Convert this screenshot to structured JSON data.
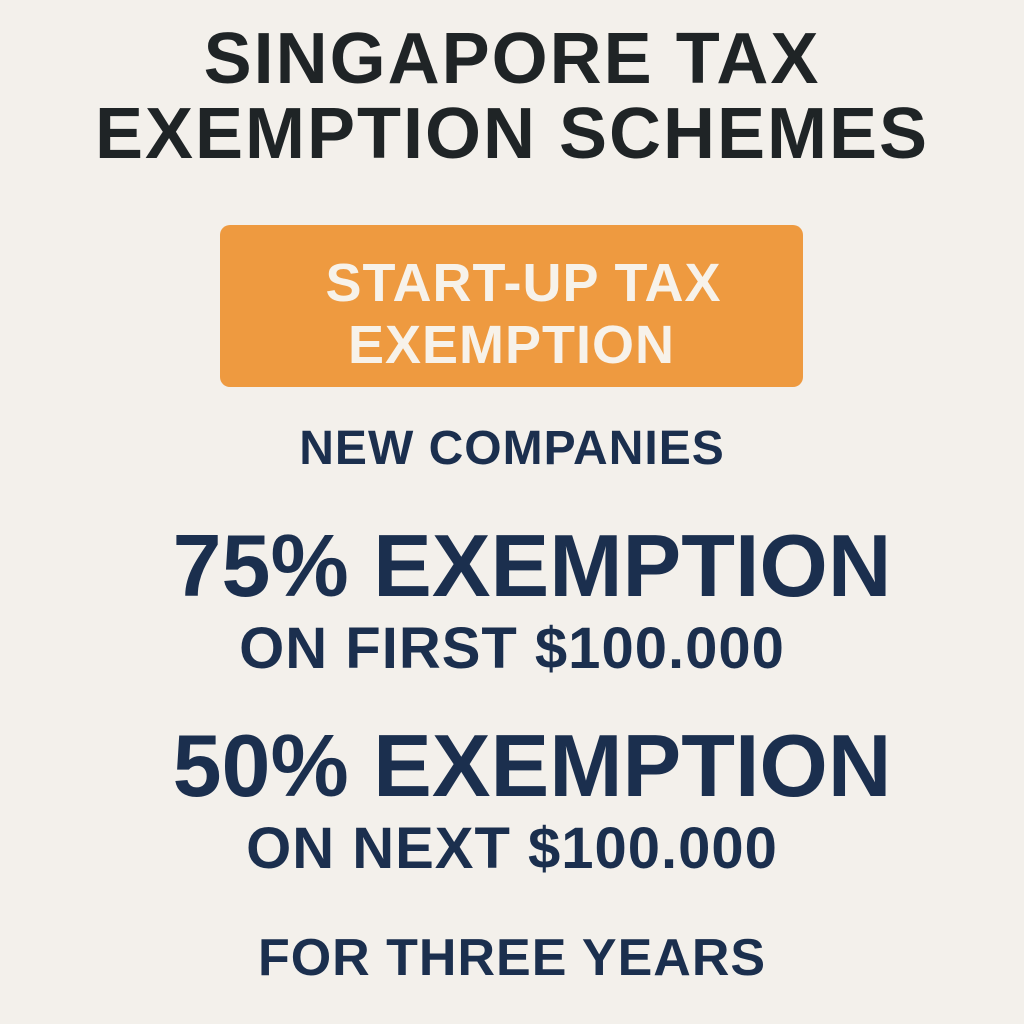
{
  "title": {
    "line1": "SINGAPORE TAX",
    "line2": "EXEMPTION SCHEMES"
  },
  "scheme_box": {
    "line1": "START-UP TAX",
    "line2": "EXEMPTION",
    "color": "#ee9a40"
  },
  "audience": "NEW COMPANIES",
  "tiers": [
    {
      "headline": "75% EXEMPTION",
      "detail": "ON FIRST $100.000"
    },
    {
      "headline": "50% EXEMPTION",
      "detail": "ON NEXT $100.000"
    }
  ],
  "duration": "FOR THREE YEARS",
  "colors": {
    "background": "#f3f0eb",
    "text_navy": "#1b2f4e",
    "title": "#1f2426"
  }
}
